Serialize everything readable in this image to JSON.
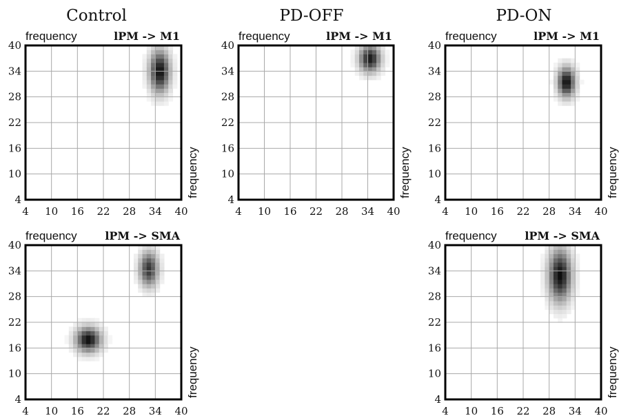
{
  "column_titles": [
    "Control",
    "PD-OFF",
    "PD-ON"
  ],
  "axis_label": "frequency",
  "colors": {
    "frame": "#000000",
    "grid": "#a8a8a8",
    "blob": "#000000",
    "background": "#ffffff"
  },
  "chart_data": [
    {
      "type": "heatmap",
      "column": "Control",
      "title": "lPM -> M1",
      "xlabel": "",
      "ylabel": "frequency",
      "right_label": "frequency",
      "ticks": [
        "4",
        "10",
        "16",
        "22",
        "28",
        "34",
        "40"
      ],
      "xlim": [
        4,
        40
      ],
      "ylim": [
        4,
        40
      ],
      "grid": true,
      "blobs": [
        {
          "x": 35,
          "y": 34,
          "sx": 1.6,
          "sy": 3.4,
          "peak": 0.95
        }
      ]
    },
    {
      "type": "heatmap",
      "column": "PD-OFF",
      "title": "lPM -> M1",
      "xlabel": "",
      "ylabel": "frequency",
      "right_label": "frequency",
      "ticks": [
        "4",
        "10",
        "16",
        "22",
        "28",
        "34",
        "40"
      ],
      "xlim": [
        4,
        40
      ],
      "ylim": [
        4,
        40
      ],
      "grid": true,
      "blobs": [
        {
          "x": 34.5,
          "y": 37,
          "sx": 1.7,
          "sy": 2.2,
          "peak": 0.9
        }
      ]
    },
    {
      "type": "heatmap",
      "column": "PD-ON",
      "title": "lPM -> M1",
      "xlabel": "",
      "ylabel": "frequency",
      "right_label": "frequency",
      "ticks": [
        "4",
        "10",
        "16",
        "22",
        "28",
        "34",
        "40"
      ],
      "xlim": [
        4,
        40
      ],
      "ylim": [
        4,
        40
      ],
      "grid": true,
      "blobs": [
        {
          "x": 32,
          "y": 31.5,
          "sx": 1.4,
          "sy": 2.4,
          "peak": 0.95
        }
      ]
    },
    {
      "type": "heatmap",
      "column": "Control",
      "title": "lPM -> SMA",
      "xlabel": "",
      "ylabel": "frequency",
      "right_label": "frequency",
      "ticks": [
        "4",
        "10",
        "16",
        "22",
        "28",
        "34",
        "40"
      ],
      "xlim": [
        4,
        40
      ],
      "ylim": [
        4,
        40
      ],
      "grid": true,
      "blobs": [
        {
          "x": 18.5,
          "y": 18,
          "sx": 2.0,
          "sy": 2.0,
          "peak": 0.95
        },
        {
          "x": 32.5,
          "y": 34.5,
          "sx": 1.5,
          "sy": 2.8,
          "peak": 0.8
        }
      ]
    },
    {
      "type": "heatmap",
      "column": "PD-ON",
      "title": "lPM -> SMA",
      "xlabel": "",
      "ylabel": "frequency",
      "right_label": "frequency",
      "ticks": [
        "4",
        "10",
        "16",
        "22",
        "28",
        "34",
        "40"
      ],
      "xlim": [
        4,
        40
      ],
      "ylim": [
        4,
        40
      ],
      "grid": true,
      "blobs": [
        {
          "x": 30.5,
          "y": 33,
          "sx": 1.8,
          "sy": 4.2,
          "peak": 0.95
        }
      ]
    }
  ]
}
